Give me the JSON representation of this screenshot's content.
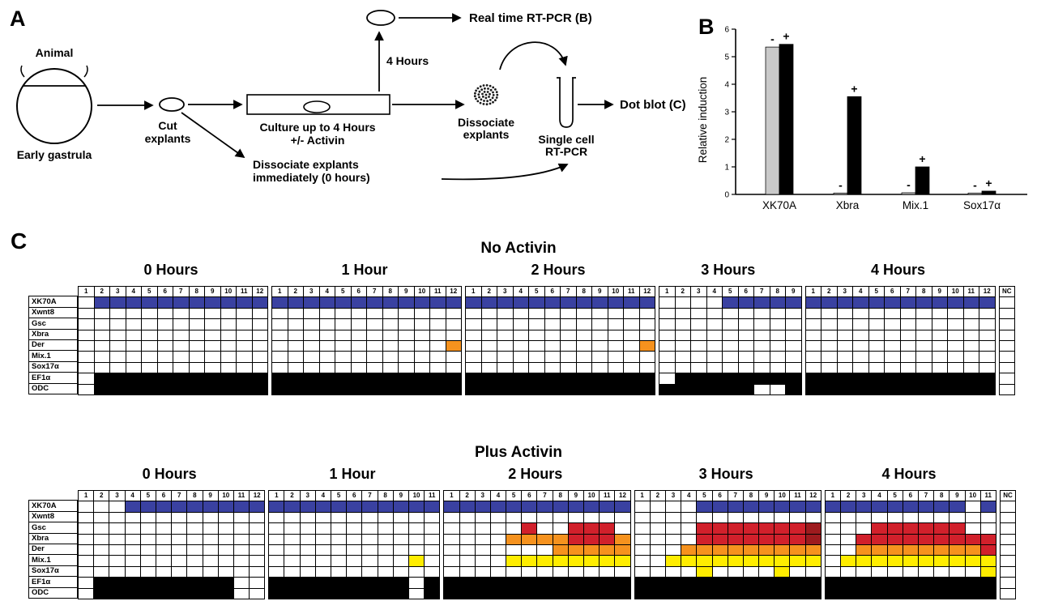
{
  "panelA": {
    "label": "A",
    "animal": "Animal",
    "early_gastrula": "Early gastrula",
    "cut_line1": "Cut",
    "cut_line2": "explants",
    "culture_line1": "Culture up to 4 Hours",
    "culture_line2": "+/- Activin",
    "four_hours": "4 Hours",
    "realtime_rtpcr": "Real time RT-PCR (B)",
    "dissociate_line1": "Dissociate",
    "dissociate_line2": "explants",
    "single_cell_line1": "Single cell",
    "single_cell_line2": "RT-PCR",
    "dot_blot": "Dot blot (C)",
    "immediately_line1": "Dissociate explants",
    "immediately_line2": "immediately (0 hours)"
  },
  "panelB": {
    "label": "B",
    "ylabel": "Relative induction"
  },
  "panelC": {
    "label": "C"
  },
  "chart_data": [
    {
      "id": "relative_induction",
      "type": "bar",
      "ylabel": "Relative induction",
      "ylim": [
        0,
        6
      ],
      "yticks": [
        0,
        1,
        2,
        3,
        4,
        5,
        6
      ],
      "categories": [
        "XK70A",
        "Xbra",
        "Mix.1",
        "Sox17α"
      ],
      "series": [
        {
          "name": "-",
          "color": "#c9c9c9",
          "values": [
            5.35,
            0.05,
            0.06,
            0.05
          ]
        },
        {
          "name": "+",
          "color": "#000000",
          "values": [
            5.45,
            3.55,
            1.0,
            0.12
          ]
        }
      ],
      "legend_position": "signs-above-bars",
      "grid": false
    },
    {
      "id": "no_activin",
      "type": "heatmap",
      "title": "No Activin",
      "cell_colors": {
        "w": "#ffffff",
        "b": "#3a41a1",
        "k": "#000000",
        "o": "#f6921e",
        "r": "#d1202b",
        "m": "#9e1b1e",
        "y": "#ffed00"
      },
      "groups": [
        {
          "label": "0 Hours",
          "col_headers": [
            "1",
            "2",
            "3",
            "4",
            "5",
            "6",
            "7",
            "8",
            "9",
            "10",
            "11",
            "12"
          ]
        },
        {
          "label": "1 Hour",
          "col_headers": [
            "1",
            "2",
            "3",
            "4",
            "5",
            "6",
            "7",
            "8",
            "9",
            "10",
            "11",
            "12"
          ]
        },
        {
          "label": "2 Hours",
          "col_headers": [
            "1",
            "2",
            "3",
            "4",
            "5",
            "6",
            "7",
            "8",
            "9",
            "10",
            "11",
            "12"
          ]
        },
        {
          "label": "3 Hours",
          "col_headers": [
            "1",
            "2",
            "3",
            "4",
            "5",
            "6",
            "7",
            "8",
            "9"
          ]
        },
        {
          "label": "4 Hours",
          "col_headers": [
            "1",
            "2",
            "3",
            "4",
            "5",
            "6",
            "7",
            "8",
            "9",
            "10",
            "11",
            "12"
          ]
        },
        {
          "label": "",
          "col_headers": [
            "NC"
          ]
        }
      ],
      "rows": [
        {
          "gene": "XK70A",
          "groups": [
            "wbbbbbbbbbbb",
            "bbbbbbbbbbbb",
            "bbbbbbbbbbbb",
            "wwwwbbbbb",
            "bbbbbbbbbbbb",
            "w"
          ]
        },
        {
          "gene": "Xwnt8",
          "groups": [
            "wwwwwwwwwwww",
            "wwwwwwwwwwww",
            "wwwwwwwwwwww",
            "wwwwwwwww",
            "wwwwwwwwwwww",
            "w"
          ]
        },
        {
          "gene": "Gsc",
          "groups": [
            "wwwwwwwwwwww",
            "wwwwwwwwwwww",
            "wwwwwwwwwwww",
            "wwwwwwwww",
            "wwwwwwwwwwww",
            "w"
          ]
        },
        {
          "gene": "Xbra",
          "groups": [
            "wwwwwwwwwwww",
            "wwwwwwwwwwww",
            "wwwwwwwwwwww",
            "wwwwwwwww",
            "wwwwwwwwwwww",
            "w"
          ]
        },
        {
          "gene": "Der",
          "groups": [
            "wwwwwwwwwwww",
            "wwwwwwwwwwwo",
            "wwwwwwwwwwwo",
            "wwwwwwwww",
            "wwwwwwwwwwww",
            "w"
          ]
        },
        {
          "gene": "Mix.1",
          "groups": [
            "wwwwwwwwwwww",
            "wwwwwwwwwwww",
            "wwwwwwwwwwww",
            "wwwwwwwww",
            "wwwwwwwwwwww",
            "w"
          ]
        },
        {
          "gene": "Sox17α",
          "groups": [
            "wwwwwwwwwwww",
            "wwwwwwwwwwww",
            "wwwwwwwwwwww",
            "wwwwwwwww",
            "wwwwwwwwwwww",
            "w"
          ]
        },
        {
          "gene": "EF1α",
          "groups": [
            "wkkkkkkkkkkk",
            "kkkkkkkkkkkk",
            "kkkkkkkkkkkk",
            "wkkkkkkkk",
            "kkkkkkkkkkkk",
            "w"
          ]
        },
        {
          "gene": "ODC",
          "groups": [
            "wkkkkkkkkkkk",
            "kkkkkkkkkkkk",
            "kkkkkkkkkkkk",
            "kkkkkkwwk",
            "kkkkkkkkkkkk",
            "w"
          ]
        }
      ]
    },
    {
      "id": "plus_activin",
      "type": "heatmap",
      "title": "Plus Activin",
      "cell_colors": {
        "w": "#ffffff",
        "b": "#3a41a1",
        "k": "#000000",
        "o": "#f6921e",
        "r": "#d1202b",
        "m": "#9e1b1e",
        "y": "#ffed00"
      },
      "groups": [
        {
          "label": "0 Hours",
          "col_headers": [
            "1",
            "2",
            "3",
            "4",
            "5",
            "6",
            "7",
            "8",
            "9",
            "10",
            "11",
            "12"
          ]
        },
        {
          "label": "1 Hour",
          "col_headers": [
            "1",
            "2",
            "3",
            "4",
            "5",
            "6",
            "7",
            "8",
            "9",
            "10",
            "11"
          ]
        },
        {
          "label": "2 Hours",
          "col_headers": [
            "1",
            "2",
            "3",
            "4",
            "5",
            "6",
            "7",
            "8",
            "9",
            "10",
            "11",
            "12"
          ]
        },
        {
          "label": "3 Hours",
          "col_headers": [
            "1",
            "2",
            "3",
            "4",
            "5",
            "6",
            "7",
            "8",
            "9",
            "10",
            "11",
            "12"
          ]
        },
        {
          "label": "4 Hours",
          "col_headers": [
            "1",
            "2",
            "3",
            "4",
            "5",
            "6",
            "7",
            "8",
            "9",
            "10",
            "11"
          ]
        },
        {
          "label": "",
          "col_headers": [
            "NC"
          ]
        }
      ],
      "rows": [
        {
          "gene": "XK70A",
          "groups": [
            "wwwbbbbbbbbb",
            "bbbbbbbbbbb",
            "bbbbbbbbbbbb",
            "wwwwbbbbbbbb",
            "bbbbbbbbbwb",
            "w"
          ]
        },
        {
          "gene": "Xwnt8",
          "groups": [
            "wwwwwwwwwwww",
            "wwwwwwwwwww",
            "wwwwwwwwwwww",
            "wwwwwwwwwwww",
            "wwwwwwwwwww",
            "w"
          ]
        },
        {
          "gene": "Gsc",
          "groups": [
            "wwwwwwwwwwww",
            "wwwwwwwwwww",
            "wwwwwrwwrrrw",
            "wwwwrrrrrrrm",
            "wwwrrrrrrww",
            "w"
          ]
        },
        {
          "gene": "Xbra",
          "groups": [
            "wwwwwwwwwwww",
            "wwwwwwwwwww",
            "wwwwoooorrro",
            "wwwwrrrrrrrm",
            "wwrrrrrrrrr",
            "w"
          ]
        },
        {
          "gene": "Der",
          "groups": [
            "wwwwwwwwwwww",
            "wwwwwwwwwww",
            "wwwwwwwooooo",
            "wwwooooooooo",
            "wwoooooooor",
            "w"
          ]
        },
        {
          "gene": "Mix.1",
          "groups": [
            "wwwwwwwwwwww",
            "wwwwwwwwwyw",
            "wwwwyyyyyyyy",
            "wwyyyyyyyyyy",
            "wyyyyyyyyyy",
            "w"
          ]
        },
        {
          "gene": "Sox17α",
          "groups": [
            "wwwwwwwwwwww",
            "wwwwwwwwwww",
            "wwwwwwwwwwww",
            "wwwwywwwwyww",
            "wwwwwwwwwwy",
            "w"
          ]
        },
        {
          "gene": "EF1α",
          "groups": [
            "wkkkkkkkkkww",
            "kkkkkkkkkwk",
            "kkkkkkkkkkkk",
            "kkkkkkkkkkkk",
            "kkkkkkkkkkk",
            "w"
          ]
        },
        {
          "gene": "ODC",
          "groups": [
            "wkkkkkkkkkww",
            "kkkkkkkkkwk",
            "kkkkkkkkkkkk",
            "kkkkkkkkkkkk",
            "kkkkkkkkkkk",
            "w"
          ]
        }
      ]
    }
  ]
}
